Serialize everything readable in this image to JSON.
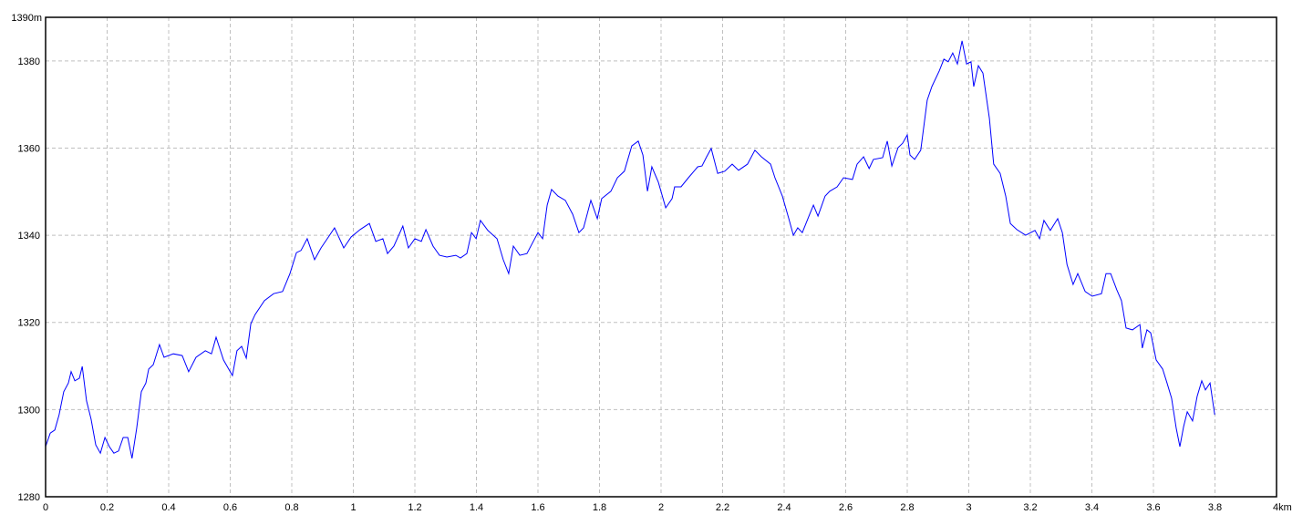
{
  "chart_data": {
    "type": "line",
    "title": "",
    "xlabel": "",
    "ylabel": "",
    "xlim": [
      0,
      4
    ],
    "ylim": [
      1280,
      1390
    ],
    "x_unit": "km",
    "y_unit": "m",
    "grid": true,
    "line_color": "#0000ff",
    "grid_color": "#c0c0c0",
    "x_ticks": [
      {
        "value": 0,
        "label": "0"
      },
      {
        "value": 0.2,
        "label": "0.2"
      },
      {
        "value": 0.4,
        "label": "0.4"
      },
      {
        "value": 0.6,
        "label": "0.6"
      },
      {
        "value": 0.8,
        "label": "0.8"
      },
      {
        "value": 1,
        "label": "1"
      },
      {
        "value": 1.2,
        "label": "1.2"
      },
      {
        "value": 1.4,
        "label": "1.4"
      },
      {
        "value": 1.6,
        "label": "1.6"
      },
      {
        "value": 1.8,
        "label": "1.8"
      },
      {
        "value": 2,
        "label": "2"
      },
      {
        "value": 2.2,
        "label": "2.2"
      },
      {
        "value": 2.4,
        "label": "2.4"
      },
      {
        "value": 2.6,
        "label": "2.6"
      },
      {
        "value": 2.8,
        "label": "2.8"
      },
      {
        "value": 3,
        "label": "3"
      },
      {
        "value": 3.2,
        "label": "3.2"
      },
      {
        "value": 3.4,
        "label": "3.4"
      },
      {
        "value": 3.6,
        "label": "3.6"
      },
      {
        "value": 3.8,
        "label": "3.8"
      },
      {
        "value": 4,
        "label": "4km"
      }
    ],
    "y_ticks": [
      {
        "value": 1280,
        "label": "1280"
      },
      {
        "value": 1300,
        "label": "1300"
      },
      {
        "value": 1320,
        "label": "1320"
      },
      {
        "value": 1340,
        "label": "1340"
      },
      {
        "value": 1360,
        "label": "1360"
      },
      {
        "value": 1380,
        "label": "1380"
      },
      {
        "value": 1390,
        "label": "1390m"
      }
    ],
    "series": [
      {
        "x": [
          0,
          0.015,
          0.03,
          0.044,
          0.059,
          0.074,
          0.083,
          0.095,
          0.11,
          0.119,
          0.133,
          0.148,
          0.163,
          0.178,
          0.193,
          0.207,
          0.222,
          0.237,
          0.252,
          0.267,
          0.281,
          0.296,
          0.311,
          0.326,
          0.335,
          0.35,
          0.37,
          0.385,
          0.415,
          0.444,
          0.465,
          0.489,
          0.519,
          0.539,
          0.554,
          0.578,
          0.607,
          0.622,
          0.637,
          0.652,
          0.667,
          0.681,
          0.711,
          0.741,
          0.77,
          0.794,
          0.815,
          0.83,
          0.85,
          0.874,
          0.895,
          0.919,
          0.939,
          0.969,
          0.993,
          1.022,
          1.052,
          1.073,
          1.096,
          1.111,
          1.132,
          1.161,
          1.179,
          1.2,
          1.221,
          1.236,
          1.259,
          1.28,
          1.304,
          1.333,
          1.348,
          1.369,
          1.384,
          1.399,
          1.413,
          1.437,
          1.467,
          1.487,
          1.505,
          1.52,
          1.541,
          1.564,
          1.585,
          1.6,
          1.615,
          1.63,
          1.644,
          1.665,
          1.689,
          1.713,
          1.733,
          1.748,
          1.772,
          1.793,
          1.807,
          1.837,
          1.858,
          1.881,
          1.905,
          1.926,
          1.941,
          1.956,
          1.97,
          1.991,
          2.015,
          2.036,
          2.044,
          2.065,
          2.089,
          2.119,
          2.133,
          2.148,
          2.163,
          2.184,
          2.207,
          2.231,
          2.252,
          2.281,
          2.305,
          2.326,
          2.356,
          2.37,
          2.394,
          2.415,
          2.43,
          2.444,
          2.459,
          2.483,
          2.495,
          2.51,
          2.533,
          2.548,
          2.572,
          2.593,
          2.622,
          2.637,
          2.658,
          2.676,
          2.69,
          2.72,
          2.735,
          2.75,
          2.77,
          2.785,
          2.8,
          2.809,
          2.824,
          2.844,
          2.865,
          2.88,
          2.904,
          2.919,
          2.933,
          2.948,
          2.963,
          2.978,
          2.993,
          3.007,
          3.016,
          3.031,
          3.046,
          3.067,
          3.081,
          3.102,
          3.12,
          3.135,
          3.156,
          3.185,
          3.215,
          3.23,
          3.244,
          3.265,
          3.289,
          3.304,
          3.319,
          3.339,
          3.354,
          3.378,
          3.401,
          3.431,
          3.446,
          3.461,
          3.481,
          3.496,
          3.511,
          3.532,
          3.556,
          3.564,
          3.579,
          3.591,
          3.609,
          3.63,
          3.644,
          3.659,
          3.674,
          3.686,
          3.698,
          3.71,
          3.727,
          3.742,
          3.757,
          3.769,
          3.784,
          3.799
        ],
        "y": [
          1291.5,
          1294.6,
          1295.3,
          1298.8,
          1304.1,
          1306.1,
          1308.7,
          1306.6,
          1307.2,
          1309.9,
          1302.0,
          1297.8,
          1291.9,
          1290.0,
          1293.6,
          1291.5,
          1290.0,
          1290.5,
          1293.6,
          1293.6,
          1288.8,
          1295.7,
          1304.1,
          1306.1,
          1309.3,
          1310.3,
          1314.9,
          1312.0,
          1312.8,
          1312.4,
          1308.7,
          1312.0,
          1313.5,
          1312.8,
          1316.6,
          1311.4,
          1307.8,
          1313.5,
          1314.5,
          1311.8,
          1319.7,
          1321.8,
          1325.0,
          1326.6,
          1327.1,
          1331.2,
          1336.0,
          1336.5,
          1339.2,
          1334.4,
          1337.1,
          1339.6,
          1341.7,
          1337.1,
          1339.6,
          1341.3,
          1342.7,
          1338.6,
          1339.2,
          1335.8,
          1337.5,
          1342.1,
          1337.1,
          1339.2,
          1338.6,
          1341.3,
          1337.5,
          1335.4,
          1335.0,
          1335.4,
          1334.8,
          1335.8,
          1340.6,
          1339.2,
          1343.4,
          1341.1,
          1339.2,
          1334.4,
          1331.2,
          1337.5,
          1335.4,
          1335.8,
          1338.6,
          1340.6,
          1339.2,
          1346.9,
          1350.5,
          1349.0,
          1348.0,
          1344.8,
          1340.6,
          1341.7,
          1348.0,
          1343.8,
          1348.4,
          1350.1,
          1353.2,
          1354.7,
          1360.5,
          1361.6,
          1358.4,
          1350.1,
          1355.7,
          1352.2,
          1346.3,
          1348.4,
          1351.1,
          1351.1,
          1353.2,
          1355.7,
          1355.9,
          1358.0,
          1359.9,
          1354.2,
          1354.7,
          1356.3,
          1354.9,
          1356.3,
          1359.5,
          1358.0,
          1356.3,
          1353.2,
          1349.0,
          1343.8,
          1340.0,
          1341.7,
          1340.6,
          1344.8,
          1346.9,
          1344.4,
          1349.0,
          1350.1,
          1351.1,
          1353.2,
          1352.8,
          1356.3,
          1358.0,
          1355.3,
          1357.4,
          1357.8,
          1361.6,
          1355.9,
          1360.1,
          1361.1,
          1363.0,
          1358.4,
          1357.4,
          1359.5,
          1371.0,
          1374.1,
          1377.7,
          1380.4,
          1379.8,
          1381.8,
          1379.3,
          1384.6,
          1379.3,
          1379.8,
          1374.1,
          1378.9,
          1377.2,
          1366.8,
          1356.3,
          1354.2,
          1349.0,
          1342.7,
          1341.3,
          1340.0,
          1341.1,
          1339.2,
          1343.4,
          1341.1,
          1343.8,
          1340.6,
          1333.3,
          1328.7,
          1331.2,
          1327.1,
          1326.0,
          1326.6,
          1331.2,
          1331.2,
          1327.5,
          1325.0,
          1318.7,
          1318.3,
          1319.5,
          1314.1,
          1318.3,
          1317.6,
          1311.4,
          1309.3,
          1306.1,
          1302.6,
          1295.7,
          1291.5,
          1296.1,
          1299.5,
          1297.4,
          1303.0,
          1306.6,
          1304.5,
          1306.1,
          1298.8
        ]
      }
    ]
  }
}
